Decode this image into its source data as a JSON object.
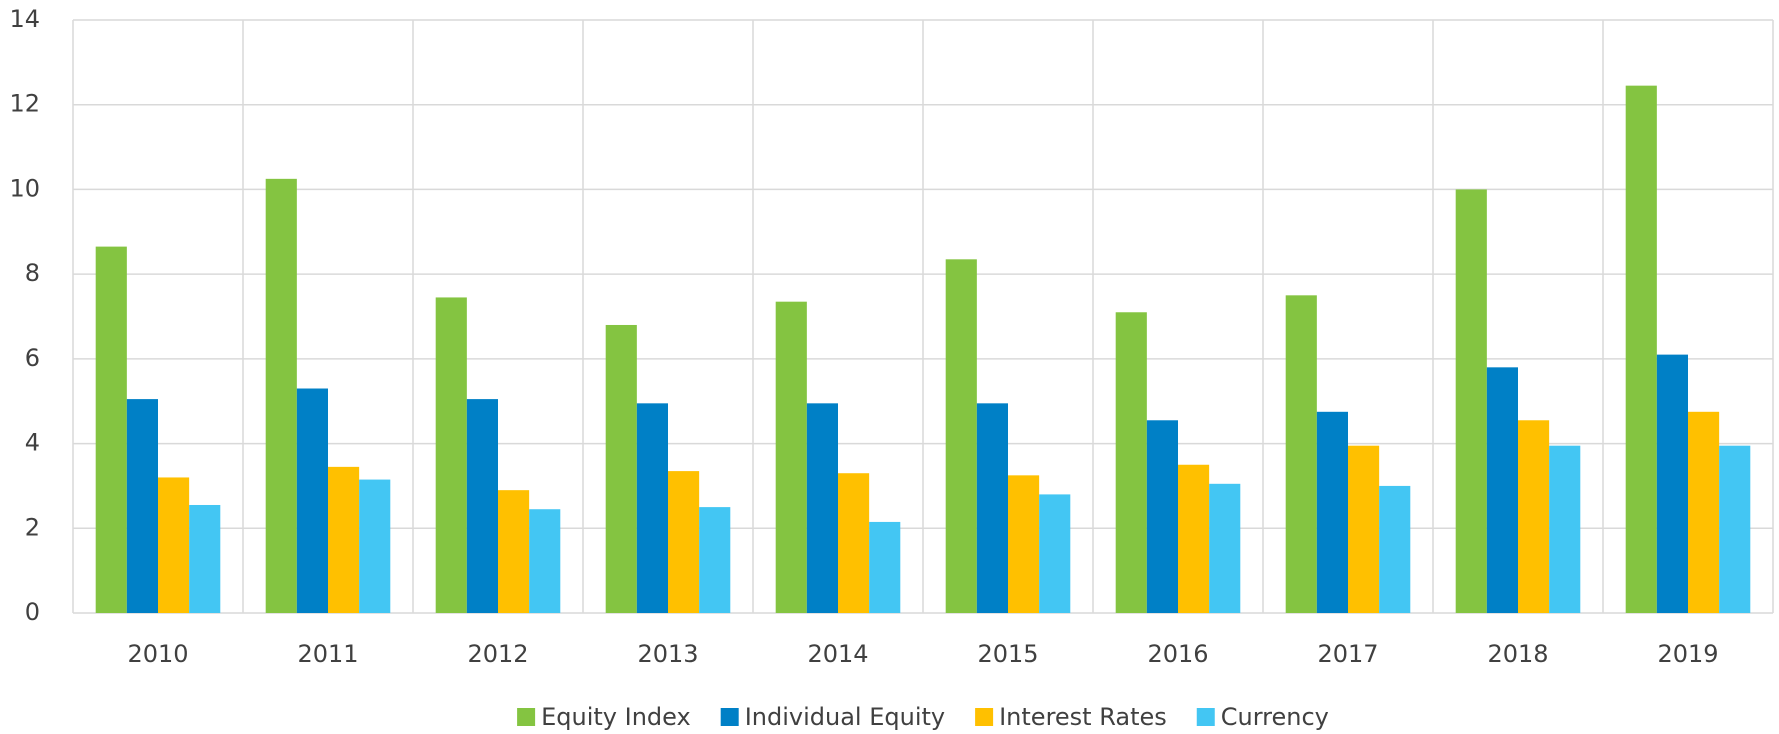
{
  "chart_data": {
    "type": "bar",
    "categories": [
      "2010",
      "2011",
      "2012",
      "2013",
      "2014",
      "2015",
      "2016",
      "2017",
      "2018",
      "2019"
    ],
    "series": [
      {
        "name": "Equity Index",
        "color": "#84c441",
        "values": [
          8.65,
          10.25,
          7.45,
          6.8,
          7.35,
          8.35,
          7.1,
          7.5,
          10.0,
          12.45
        ]
      },
      {
        "name": "Individual Equity",
        "color": "#0080c6",
        "values": [
          5.05,
          5.3,
          5.05,
          4.95,
          4.95,
          4.95,
          4.55,
          4.75,
          5.8,
          6.1
        ]
      },
      {
        "name": "Interest Rates",
        "color": "#ffc000",
        "values": [
          3.2,
          3.45,
          2.9,
          3.35,
          3.3,
          3.25,
          3.5,
          3.95,
          4.55,
          4.75
        ]
      },
      {
        "name": "Currency",
        "color": "#43c6f3",
        "values": [
          2.55,
          3.15,
          2.45,
          2.5,
          2.15,
          2.8,
          3.05,
          3.0,
          3.95,
          3.95
        ]
      }
    ],
    "ylim": [
      0,
      14
    ],
    "yticks": [
      0,
      2,
      4,
      6,
      8,
      10,
      12,
      14
    ],
    "grid": true,
    "legend": "bottom"
  }
}
